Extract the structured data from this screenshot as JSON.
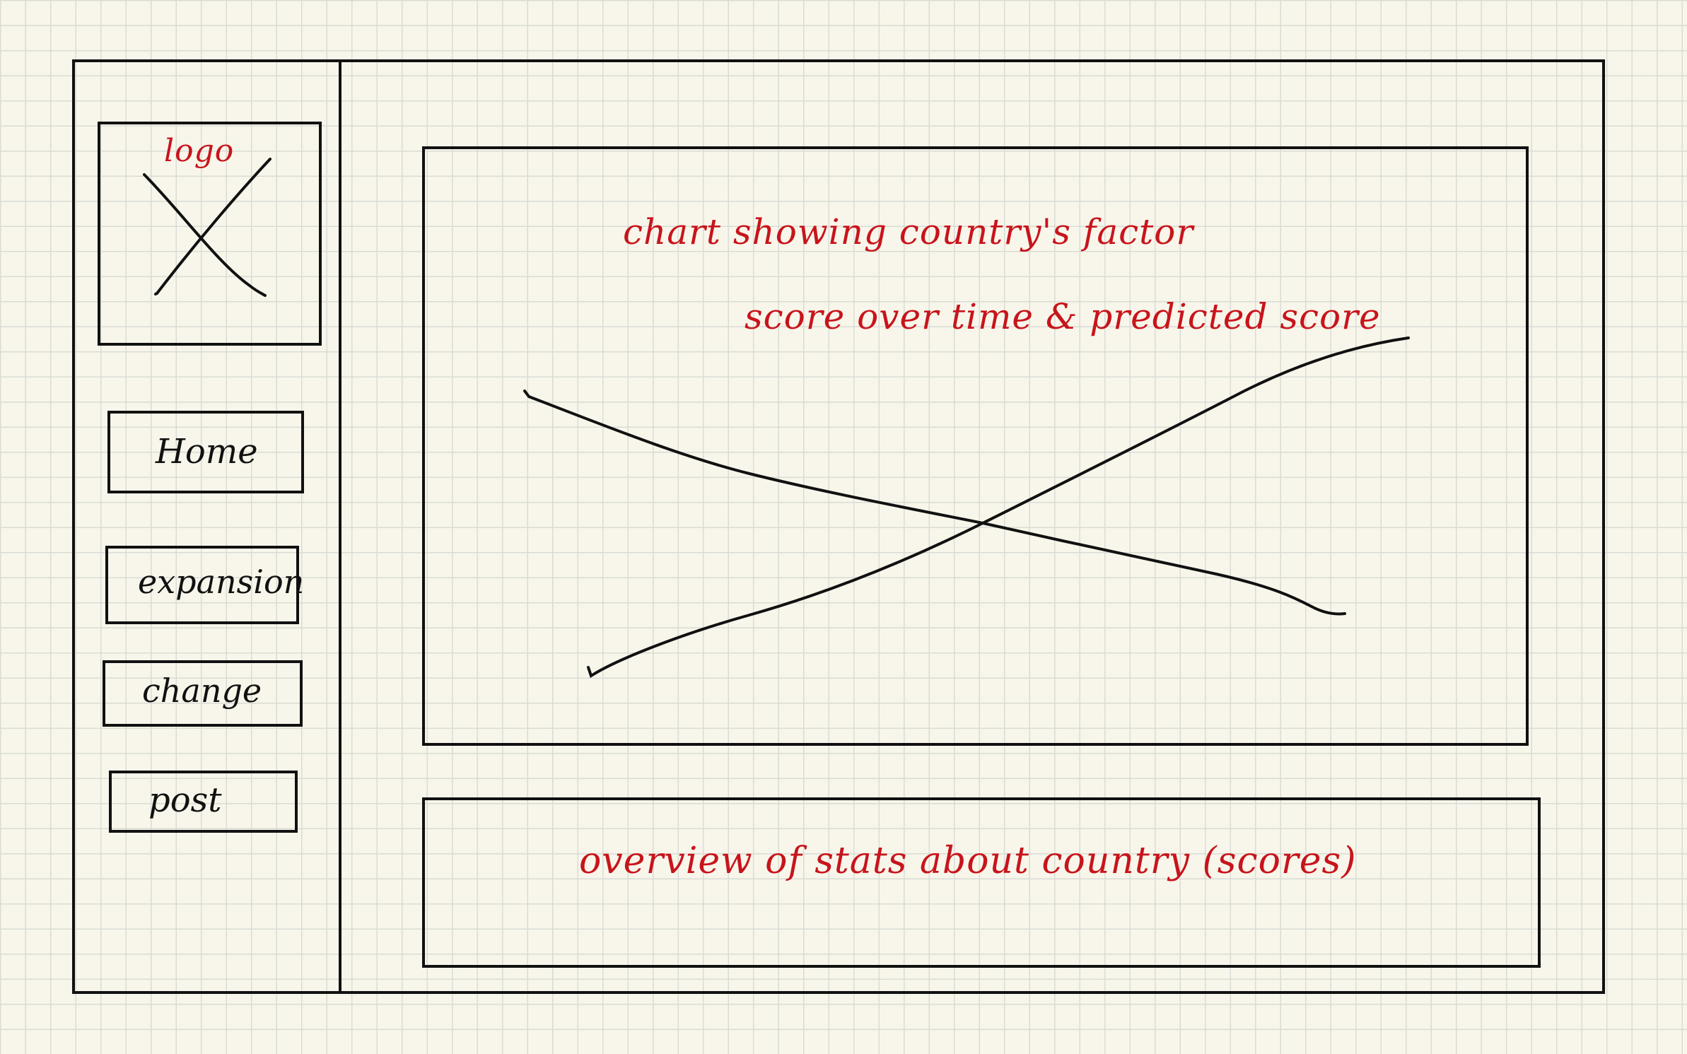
{
  "sidebar": {
    "logo_label": "logo",
    "nav": [
      {
        "id": "home",
        "label": "Home"
      },
      {
        "id": "expansion",
        "label": "expansion"
      },
      {
        "id": "change",
        "label": "change"
      },
      {
        "id": "post",
        "label": "post"
      }
    ]
  },
  "main": {
    "chart_note_line1": "chart showing country's factor",
    "chart_note_line2": "score over time & predicted score",
    "stats_note": "overview of stats about country (scores)"
  },
  "colors": {
    "ink": "#111111",
    "annotation": "#c8141c",
    "paper": "#f8f6ea"
  }
}
